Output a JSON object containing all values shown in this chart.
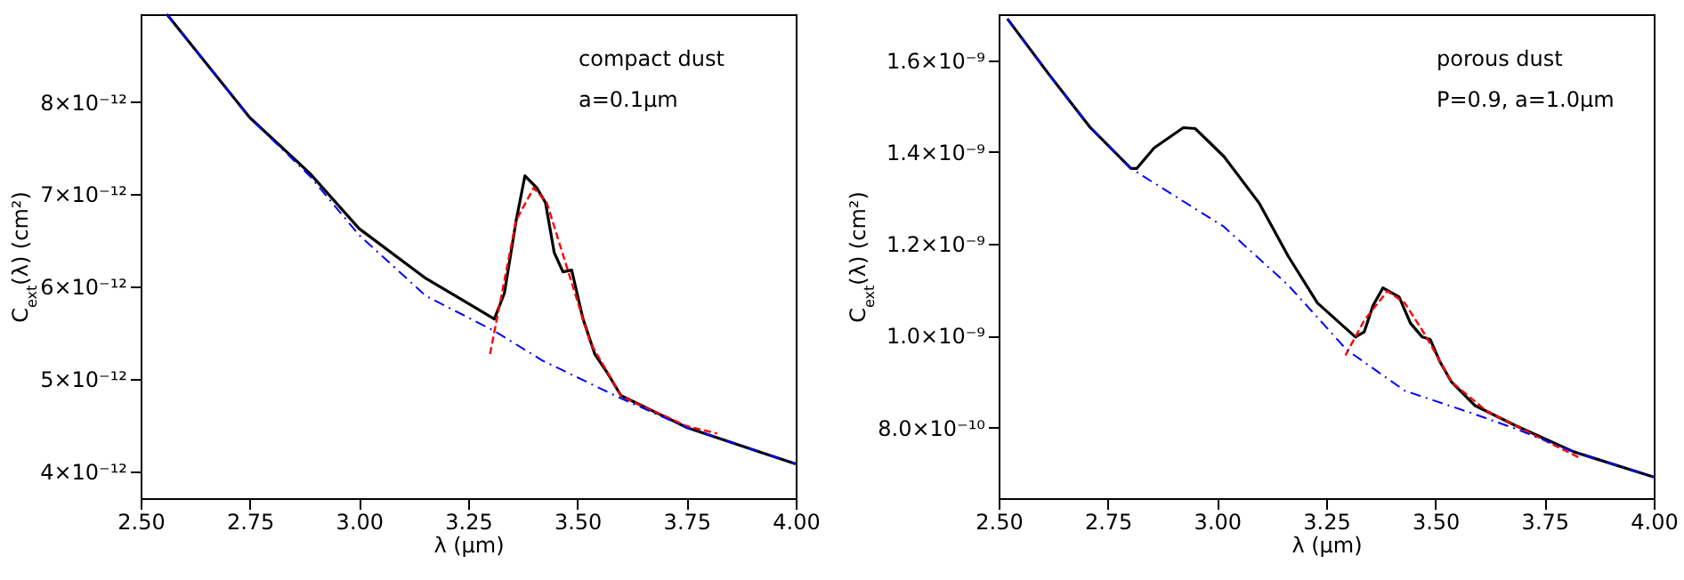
{
  "chart_data": [
    {
      "type": "line",
      "xlabel": "λ (μm)",
      "ylabel": "C$_{ext}$(λ) (cm²)",
      "annotations": [
        "compact dust",
        "a=0.1μm"
      ],
      "xlim": [
        2.5,
        4.0
      ],
      "ylim": [
        3.71e-12,
        8.95e-12
      ],
      "xticks": [
        {
          "value": 2.5,
          "label": "2.50"
        },
        {
          "value": 2.75,
          "label": "2.75"
        },
        {
          "value": 3.0,
          "label": "3.00"
        },
        {
          "value": 3.25,
          "label": "3.25"
        },
        {
          "value": 3.5,
          "label": "3.50"
        },
        {
          "value": 3.75,
          "label": "3.75"
        },
        {
          "value": 4.0,
          "label": "4.00"
        }
      ],
      "yticks": [
        {
          "value": 4e-12,
          "label": "4×10⁻¹²"
        },
        {
          "value": 5e-12,
          "label": "5×10⁻¹²"
        },
        {
          "value": 6e-12,
          "label": "6×10⁻¹²"
        },
        {
          "value": 7e-12,
          "label": "7×10⁻¹²"
        },
        {
          "value": 8e-12,
          "label": "8×10⁻¹²"
        }
      ],
      "grid": false,
      "series": [
        {
          "color": "#0000ff",
          "line_style": "dashdot",
          "x": [
            2.56,
            2.75,
            2.887,
            3.0,
            3.153,
            3.31,
            3.42,
            3.6,
            3.753,
            4.0
          ],
          "values": [
            8.95e-12,
            7.83e-12,
            7.2e-12,
            6.56e-12,
            5.9e-12,
            5.52e-12,
            5.2e-12,
            4.79e-12,
            4.47e-12,
            4.08e-12
          ]
        },
        {
          "color": "#ff0000",
          "line_style": "dashed",
          "x": [
            3.3,
            3.36,
            3.4,
            3.43,
            3.48,
            3.53,
            3.6,
            3.65,
            3.7,
            3.75,
            3.82
          ],
          "values": [
            5.27e-12,
            6.72e-12,
            7.07e-12,
            6.91e-12,
            6.15e-12,
            5.39e-12,
            4.82e-12,
            4.7e-12,
            4.6e-12,
            4.49e-12,
            4.41e-12
          ]
        },
        {
          "color": "#000000",
          "line_style": "solid",
          "x": [
            2.56,
            2.75,
            2.887,
            3.0,
            3.153,
            3.31,
            3.333,
            3.36,
            3.38,
            3.407,
            3.427,
            3.447,
            3.467,
            3.487,
            3.513,
            3.54,
            3.567,
            3.6,
            3.753,
            4.0
          ],
          "values": [
            8.95e-12,
            7.83e-12,
            7.23e-12,
            6.63e-12,
            6.09e-12,
            5.65e-12,
            5.93e-12,
            6.72e-12,
            7.2e-12,
            7.07e-12,
            6.91e-12,
            6.37e-12,
            6.16e-12,
            6.18e-12,
            5.65e-12,
            5.27e-12,
            5.08e-12,
            4.82e-12,
            4.47e-12,
            4.08e-12
          ]
        }
      ]
    },
    {
      "type": "line",
      "xlabel": "λ (μm)",
      "ylabel": "C$_{ext}$(λ) (cm²)",
      "annotations": [
        "porous dust",
        "P=0.9, a=1.0μm"
      ],
      "xlim": [
        2.5,
        4.0
      ],
      "ylim": [
        6.46e-10,
        1.7e-09
      ],
      "xticks": [
        {
          "value": 2.5,
          "label": "2.50"
        },
        {
          "value": 2.75,
          "label": "2.75"
        },
        {
          "value": 3.0,
          "label": "3.00"
        },
        {
          "value": 3.25,
          "label": "3.25"
        },
        {
          "value": 3.5,
          "label": "3.50"
        },
        {
          "value": 3.75,
          "label": "3.75"
        },
        {
          "value": 4.0,
          "label": "4.00"
        }
      ],
      "yticks": [
        {
          "value": 8e-10,
          "label": "8.0×10⁻¹⁰"
        },
        {
          "value": 1e-09,
          "label": "1.0×10⁻⁹"
        },
        {
          "value": 1.2e-09,
          "label": "1.2×10⁻⁹"
        },
        {
          "value": 1.4e-09,
          "label": "1.4×10⁻⁹"
        },
        {
          "value": 1.6e-09,
          "label": "1.6×10⁻⁹"
        }
      ],
      "grid": false,
      "series": [
        {
          "color": "#0000ff",
          "line_style": "dashdot",
          "x": [
            2.52,
            2.616,
            2.71,
            2.803,
            3.016,
            3.163,
            3.297,
            3.43,
            3.59,
            3.684,
            3.817,
            4.0
          ],
          "values": [
            1.69e-09,
            1.568e-09,
            1.453e-09,
            1.364e-09,
            1.237e-09,
            1.11e-09,
            9.69e-10,
            8.8e-10,
            8.29e-10,
            7.97e-10,
            7.47e-10,
            6.92e-10
          ]
        },
        {
          "color": "#ff0000",
          "line_style": "dashed",
          "x": [
            3.294,
            3.337,
            3.39,
            3.43,
            3.477,
            3.537,
            3.617,
            3.75,
            3.83
          ],
          "values": [
            9.57e-10,
            1.033e-09,
            1.097e-09,
            1.071e-09,
            1.001e-09,
            8.99e-10,
            8.36e-10,
            7.72e-10,
            7.34e-10
          ]
        },
        {
          "color": "#000000",
          "line_style": "solid",
          "x": [
            2.52,
            2.616,
            2.71,
            2.803,
            2.816,
            2.856,
            2.923,
            2.95,
            3.016,
            3.097,
            3.163,
            3.23,
            3.317,
            3.337,
            3.357,
            3.38,
            3.417,
            3.443,
            3.47,
            3.488,
            3.51,
            3.537,
            3.59,
            3.684,
            3.817,
            4.0
          ],
          "values": [
            1.69e-09,
            1.568e-09,
            1.453e-09,
            1.364e-09,
            1.364e-09,
            1.409e-09,
            1.453e-09,
            1.451e-09,
            1.39e-09,
            1.288e-09,
            1.173e-09,
            1.071e-09,
            9.97e-10,
            1.008e-09,
            1.065e-09,
            1.104e-09,
            1.084e-09,
            1.027e-09,
            9.97e-10,
            9.92e-10,
            9.44e-10,
            8.99e-10,
            8.48e-10,
            8.04e-10,
            7.47e-10,
            6.92e-10
          ]
        }
      ]
    }
  ]
}
